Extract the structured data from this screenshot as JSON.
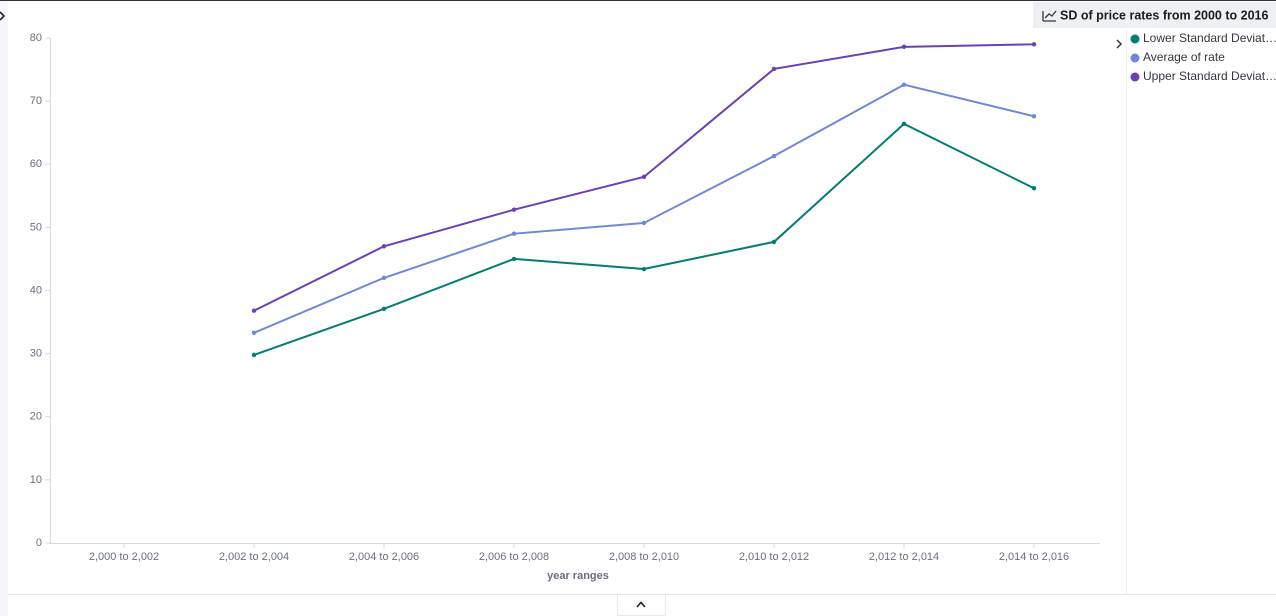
{
  "chart_data": {
    "type": "line",
    "title": "SD of price rates from 2000 to 2016",
    "x_label": "year ranges",
    "categories": [
      "2,000 to 2,002",
      "2,002 to 2,004",
      "2,004 to 2,006",
      "2,006 to 2,008",
      "2,008 to 2,010",
      "2,010 to 2,012",
      "2,012 to 2,014",
      "2,014 to 2,016"
    ],
    "series": [
      {
        "name": "Lower Standard Deviat…",
        "color": "#017d73",
        "values": [
          null,
          29.8,
          37.1,
          45.0,
          43.4,
          47.7,
          66.4,
          56.2
        ]
      },
      {
        "name": "Average of rate",
        "color": "#6f87d8",
        "values": [
          null,
          33.3,
          42.0,
          49.0,
          50.7,
          61.3,
          72.6,
          67.6
        ]
      },
      {
        "name": "Upper Standard Deviat…",
        "color": "#6b3fb5",
        "values": [
          null,
          36.8,
          47.0,
          52.8,
          58.0,
          75.1,
          78.6,
          79.0
        ]
      }
    ],
    "ylim": [
      0,
      80
    ],
    "yticks": [
      0,
      10,
      20,
      30,
      40,
      50,
      60,
      70,
      80
    ],
    "grid": false
  }
}
